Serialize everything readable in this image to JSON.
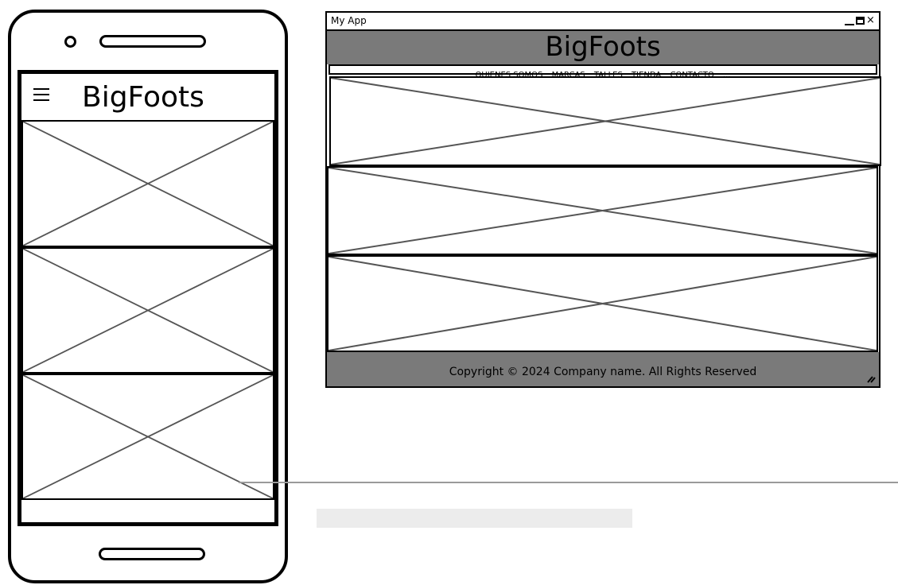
{
  "mobile": {
    "title": "BigFoots",
    "menu_icon": "hamburger-menu-icon",
    "image_placeholders": 3
  },
  "desktop": {
    "window_title": "My App",
    "header_title": "BigFoots",
    "nav_items": [
      "QUIENES SOMOS",
      "MARCAS",
      "TALLES",
      "TIENDA",
      "CONTACTO",
      "..."
    ],
    "image_placeholders": 3,
    "footer_text": "Copyright © 2024 Company name. All Rights Reserved"
  },
  "colors": {
    "header_bg": "#7a7a7a",
    "footer_bg": "#7a7a7a",
    "placeholder_cross": "#555555"
  }
}
